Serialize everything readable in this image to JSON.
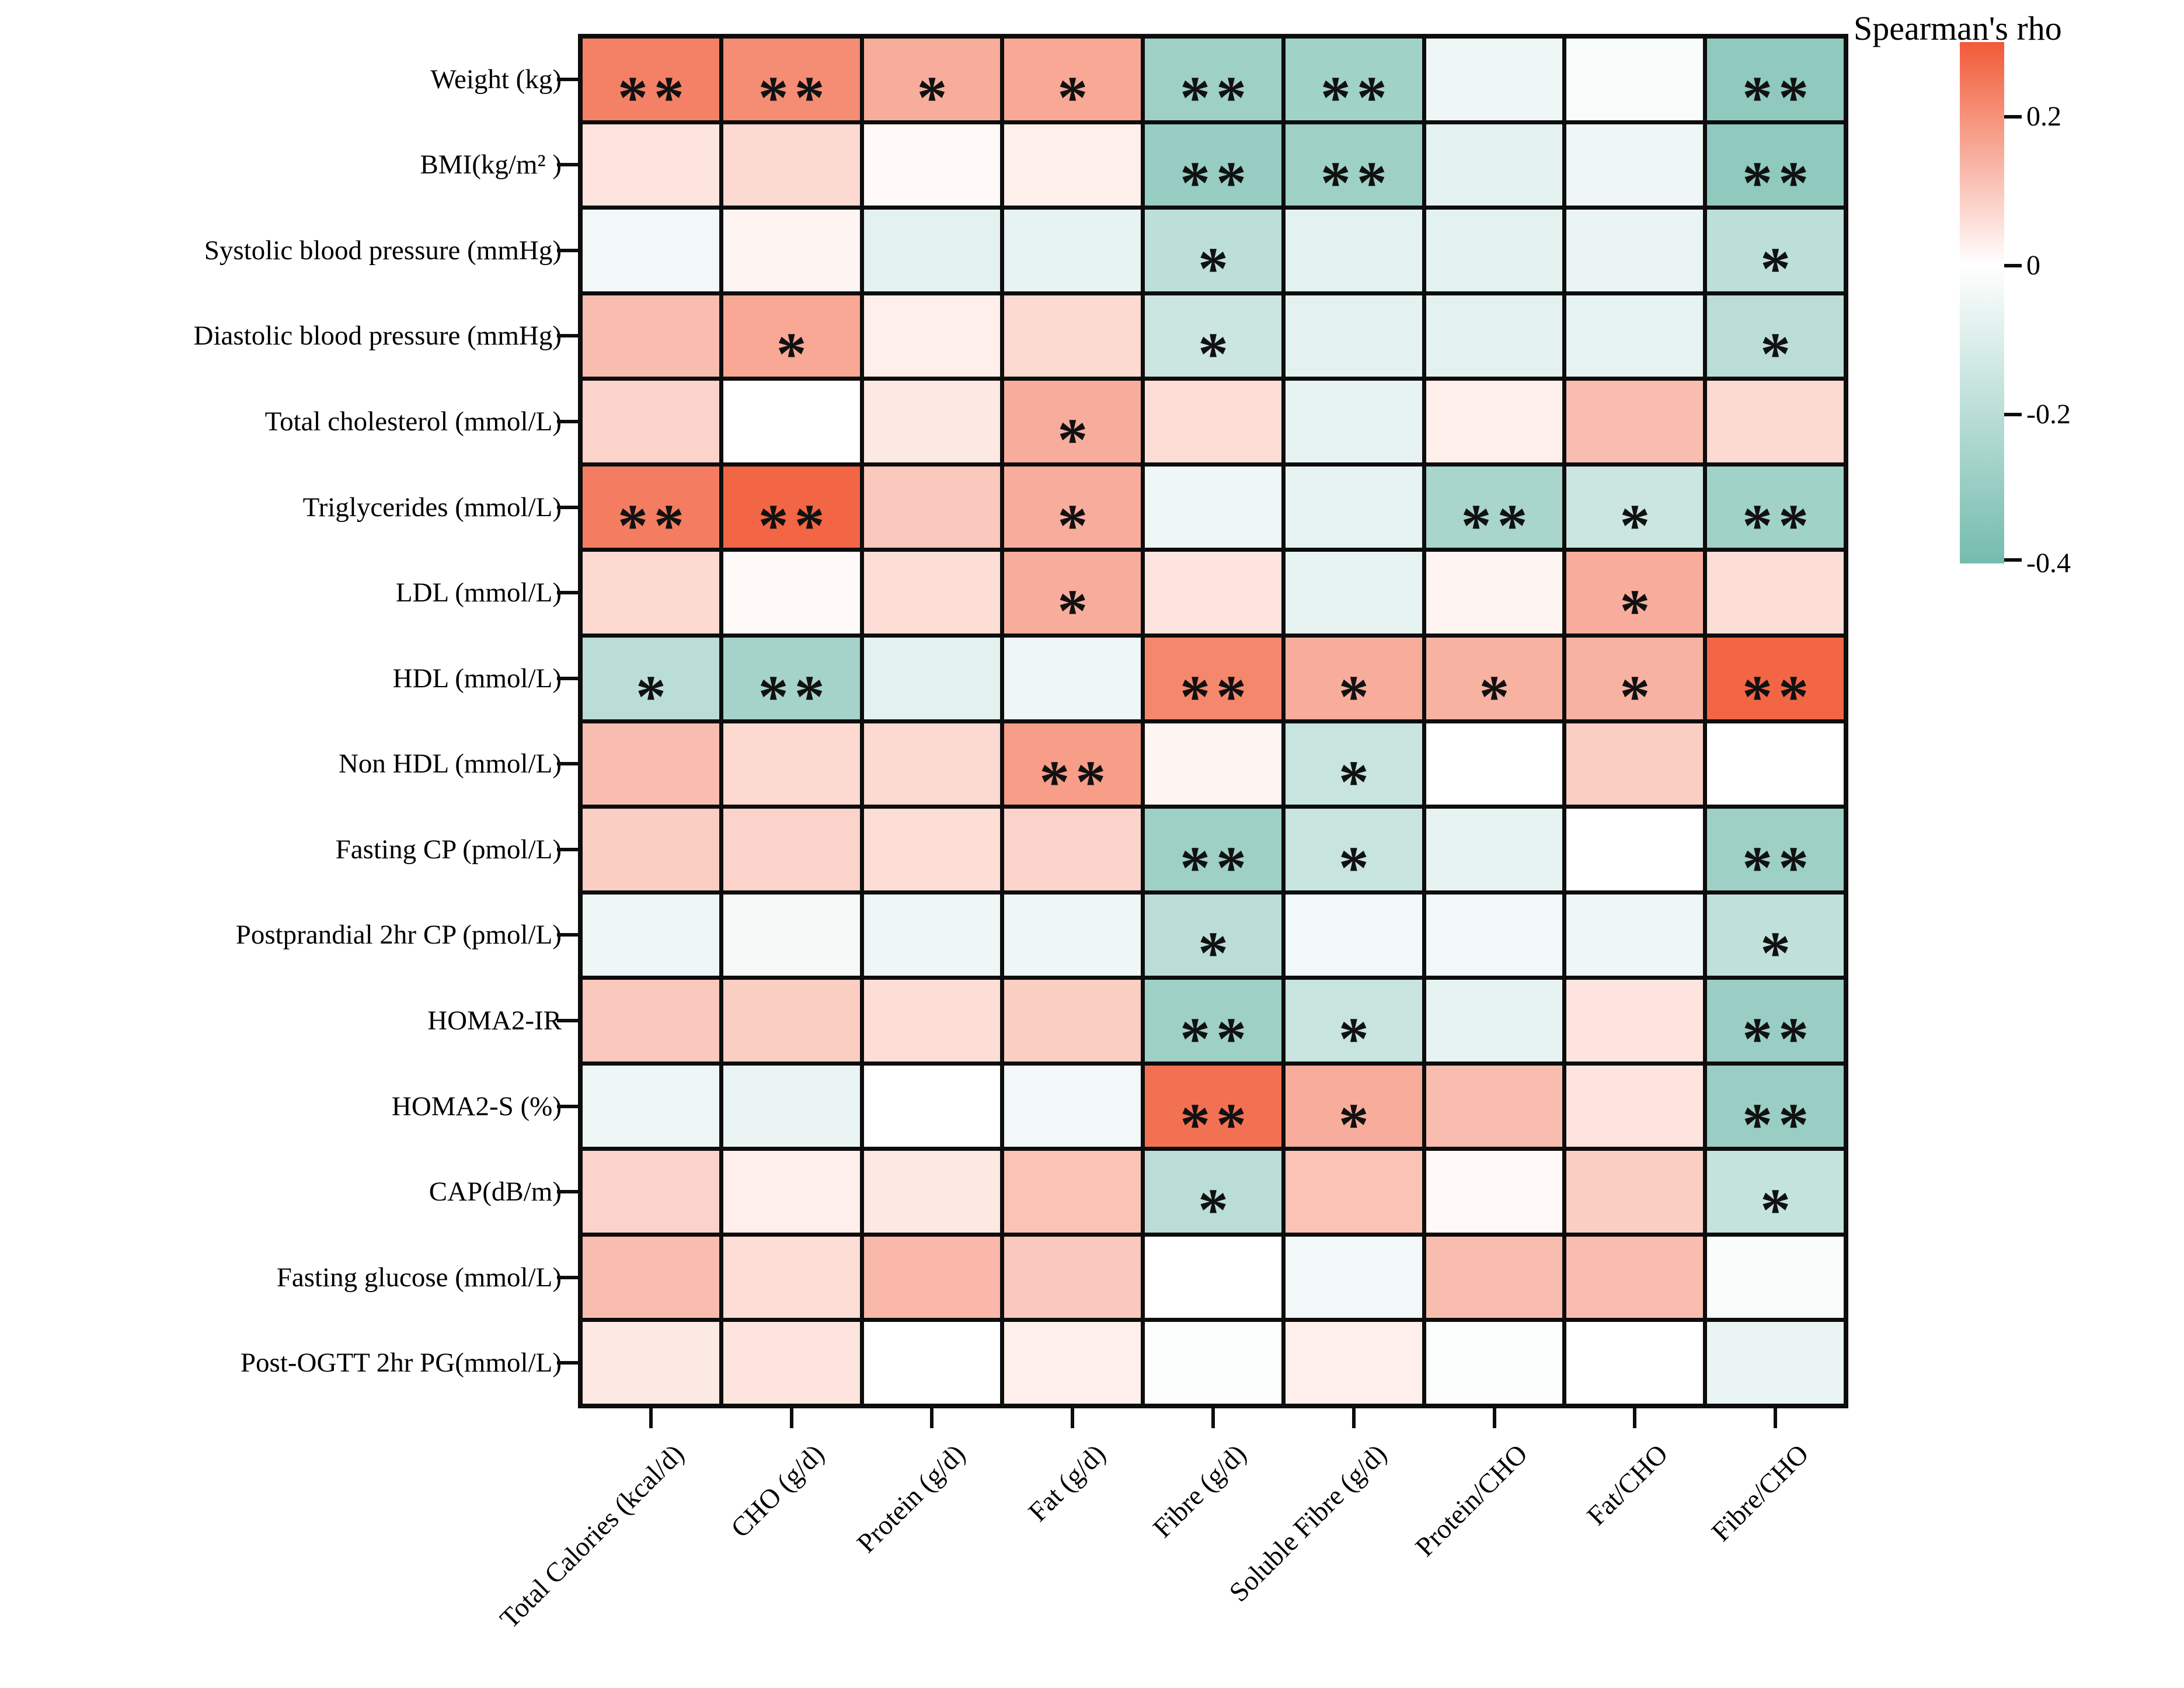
{
  "figure": {
    "kind": "correlation-heatmap",
    "background": "#ffffff",
    "grid_line_color": "#0d0d0d"
  },
  "legend": {
    "title": "Spearman's rho",
    "vmax": 0.3,
    "vmin": -0.4,
    "pos_color": "#f15b38",
    "neg_color": "#74bcae",
    "mid_color": "#ffffff",
    "ticks": [
      {
        "value": 0.2,
        "label": "0.2"
      },
      {
        "value": 0.0,
        "label": "0"
      },
      {
        "value": -0.2,
        "label": "-0.2"
      },
      {
        "value": -0.4,
        "label": "-0.4"
      }
    ]
  },
  "chart_data": {
    "type": "heatmap",
    "xlabel": "",
    "ylabel": "",
    "legend_position": "right",
    "value_range": [
      -0.4,
      0.3
    ],
    "columns": [
      "Total Calories (kcal/d)",
      "CHO (g/d)",
      "Protein (g/d)",
      "Fat (g/d)",
      "Fibre (g/d)",
      "Soluble Fibre (g/d)",
      "Protein/CHO",
      "Fat/CHO",
      "Fibre/CHO"
    ],
    "rows": [
      "Weight (kg)",
      "BMI(kg/m² )",
      "Systolic blood pressure (mmHg)",
      "Diastolic blood pressure (mmHg)",
      "Total cholesterol (mmol/L)",
      "Triglycerides (mmol/L)",
      "LDL (mmol/L)",
      "HDL (mmol/L)",
      "Non HDL (mmol/L)",
      "Fasting CP (pmol/L)",
      "Postprandial 2hr CP (pmol/L)",
      "HOMA2-IR",
      "HOMA2-S (%)",
      "CAP(dB/m)",
      "Fasting glucose (mmol/L)",
      "Post-OGTT 2hr PG(mmol/L)"
    ],
    "values": [
      [
        0.23,
        0.21,
        0.15,
        0.16,
        -0.28,
        -0.27,
        -0.05,
        -0.02,
        -0.32
      ],
      [
        0.05,
        0.07,
        0.01,
        0.03,
        -0.3,
        -0.28,
        -0.08,
        -0.05,
        -0.32
      ],
      [
        -0.04,
        0.02,
        -0.08,
        -0.07,
        -0.19,
        -0.08,
        -0.08,
        -0.06,
        -0.19
      ],
      [
        0.12,
        0.16,
        0.03,
        0.07,
        -0.15,
        -0.08,
        -0.08,
        -0.07,
        -0.2
      ],
      [
        0.08,
        0.0,
        0.04,
        0.15,
        0.06,
        -0.07,
        0.03,
        0.12,
        0.07
      ],
      [
        0.24,
        0.28,
        0.1,
        0.15,
        -0.05,
        -0.07,
        -0.25,
        -0.15,
        -0.27
      ],
      [
        0.07,
        0.01,
        0.06,
        0.15,
        0.05,
        -0.07,
        0.02,
        0.15,
        0.06
      ],
      [
        -0.2,
        -0.26,
        -0.08,
        -0.05,
        0.22,
        0.15,
        0.14,
        0.14,
        0.28
      ],
      [
        0.12,
        0.07,
        0.07,
        0.18,
        0.02,
        -0.16,
        0.0,
        0.09,
        0.0
      ],
      [
        0.09,
        0.08,
        0.06,
        0.08,
        -0.28,
        -0.16,
        -0.07,
        0.0,
        -0.28
      ],
      [
        -0.05,
        -0.03,
        -0.05,
        -0.05,
        -0.2,
        -0.04,
        -0.04,
        -0.05,
        -0.18
      ],
      [
        0.1,
        0.09,
        0.06,
        0.09,
        -0.28,
        -0.16,
        -0.07,
        0.05,
        -0.29
      ],
      [
        -0.05,
        -0.06,
        0.0,
        -0.04,
        0.26,
        0.15,
        0.12,
        0.05,
        -0.29
      ],
      [
        0.08,
        0.03,
        0.04,
        0.11,
        -0.2,
        0.11,
        0.01,
        0.09,
        -0.17
      ],
      [
        0.12,
        0.06,
        0.13,
        0.1,
        0.0,
        -0.04,
        0.12,
        0.12,
        -0.02
      ],
      [
        0.04,
        0.05,
        0.0,
        0.03,
        -0.01,
        0.03,
        -0.01,
        0.0,
        -0.06
      ]
    ],
    "significance": [
      [
        "**",
        "**",
        "*",
        "*",
        "**",
        "**",
        "",
        "",
        "**"
      ],
      [
        "",
        "",
        "",
        "",
        "**",
        "**",
        "",
        "",
        "**"
      ],
      [
        "",
        "",
        "",
        "",
        "*",
        "",
        "",
        "",
        "*"
      ],
      [
        "",
        "*",
        "",
        "",
        "*",
        "",
        "",
        "",
        "*"
      ],
      [
        "",
        "",
        "",
        "*",
        "",
        "",
        "",
        "",
        ""
      ],
      [
        "**",
        "**",
        "",
        "*",
        "",
        "",
        "**",
        "*",
        "**"
      ],
      [
        "",
        "",
        "",
        "*",
        "",
        "",
        "",
        "*",
        ""
      ],
      [
        "*",
        "**",
        "",
        "",
        "**",
        "*",
        "*",
        "*",
        "**"
      ],
      [
        "",
        "",
        "",
        "**",
        "",
        "*",
        "",
        "",
        ""
      ],
      [
        "",
        "",
        "",
        "",
        "**",
        "*",
        "",
        "",
        "**"
      ],
      [
        "",
        "",
        "",
        "",
        "*",
        "",
        "",
        "",
        "*"
      ],
      [
        "",
        "",
        "",
        "",
        "**",
        "*",
        "",
        "",
        "**"
      ],
      [
        "",
        "",
        "",
        "",
        "**",
        "*",
        "",
        "",
        "**"
      ],
      [
        "",
        "",
        "",
        "",
        "*",
        "",
        "",
        "",
        "*"
      ],
      [
        "",
        "",
        "",
        "",
        "",
        "",
        "",
        "",
        ""
      ],
      [
        "",
        "",
        "",
        "",
        "",
        "",
        "",
        "",
        ""
      ]
    ]
  }
}
